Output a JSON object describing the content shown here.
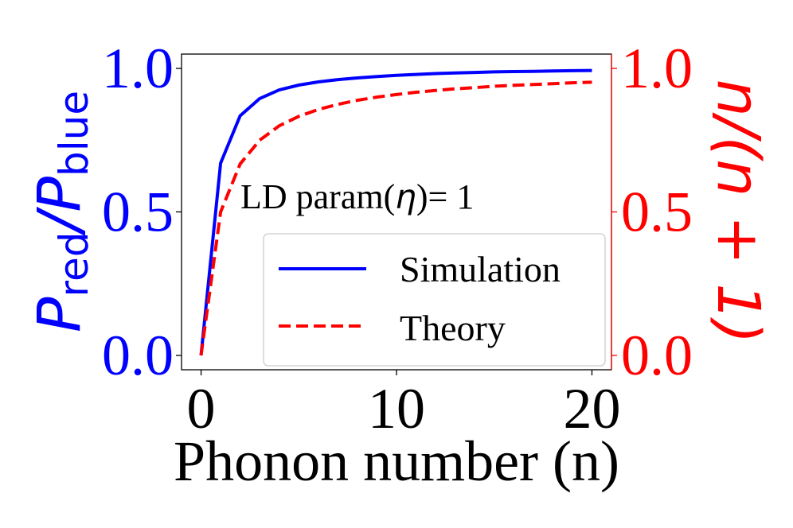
{
  "chart_data": {
    "type": "line",
    "x": [
      0,
      1,
      2,
      3,
      4,
      5,
      6,
      7,
      8,
      9,
      10,
      11,
      12,
      13,
      14,
      15,
      16,
      17,
      18,
      19,
      20
    ],
    "x_axis": {
      "label": "Phonon number (n)",
      "range": [
        -1,
        21
      ],
      "ticks": [
        0,
        10,
        20
      ],
      "tick_labels": [
        "0",
        "10",
        "20"
      ]
    },
    "y_axis_left": {
      "label_main": "P",
      "label_sub1": "red",
      "label_slash": "/",
      "label_main2": "P",
      "label_sub2": "blue",
      "color": "#0000ff",
      "range": [
        -0.05,
        1.05
      ],
      "ticks": [
        0.0,
        0.5,
        1.0
      ],
      "tick_labels": [
        "0.0",
        "0.5",
        "1.0"
      ]
    },
    "y_axis_right": {
      "label": "n/(n + 1)",
      "color": "#ff0000",
      "range": [
        -0.05,
        1.05
      ],
      "ticks": [
        0.0,
        0.5,
        1.0
      ],
      "tick_labels": [
        "0.0",
        "0.5",
        "1.0"
      ]
    },
    "annotation": {
      "prefix": "LD param(",
      "symbol": "η",
      "suffix": ")= 1"
    },
    "legend": {
      "placement": "lower-right",
      "entries": [
        "Simulation",
        "Theory"
      ]
    },
    "series": [
      {
        "name": "Simulation",
        "color": "#0000ff",
        "style": "solid",
        "axis": "left",
        "values": [
          0.0,
          0.67,
          0.835,
          0.895,
          0.925,
          0.942,
          0.953,
          0.961,
          0.967,
          0.972,
          0.976,
          0.979,
          0.982,
          0.984,
          0.986,
          0.988,
          0.989,
          0.99,
          0.991,
          0.992,
          0.993
        ]
      },
      {
        "name": "Theory",
        "color": "#ff0000",
        "style": "dashed",
        "axis": "right",
        "values": [
          0.0,
          0.5,
          0.667,
          0.75,
          0.8,
          0.833,
          0.857,
          0.875,
          0.889,
          0.9,
          0.909,
          0.917,
          0.923,
          0.929,
          0.933,
          0.938,
          0.941,
          0.944,
          0.947,
          0.95,
          0.952
        ]
      }
    ]
  }
}
